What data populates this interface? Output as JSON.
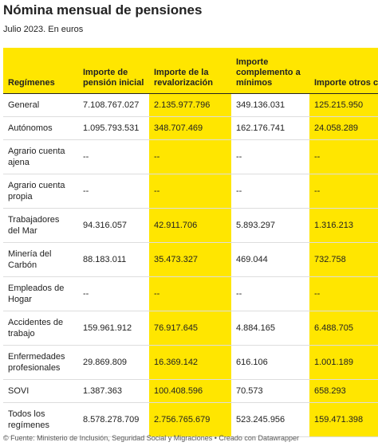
{
  "header": {
    "title": "Nómina mensual de pensiones",
    "subtitle": "Julio 2023. En euros"
  },
  "table": {
    "columns": [
      "Regímenes",
      "Importe de pensión inicial",
      "Importe de la revalorización",
      "Importe complemento a mínimos",
      "Importe otros complementos"
    ],
    "rows": [
      [
        "General",
        "7.108.767.027",
        "2.135.977.796",
        "349.136.031",
        "125.215.950"
      ],
      [
        "Autónomos",
        "1.095.793.531",
        "348.707.469",
        "162.176.741",
        "24.058.289"
      ],
      [
        "Agrario cuenta ajena",
        "--",
        "--",
        "--",
        "--"
      ],
      [
        "Agrario cuenta propia",
        "--",
        "--",
        "--",
        "--"
      ],
      [
        "Trabajadores del Mar",
        "94.316.057",
        "42.911.706",
        "5.893.297",
        "1.316.213"
      ],
      [
        "Minería del Carbón",
        "88.183.011",
        "35.473.327",
        "469.044",
        "732.758"
      ],
      [
        "Empleados de Hogar",
        "--",
        "--",
        "--",
        "--"
      ],
      [
        "Accidentes de trabajo",
        "159.961.912",
        "76.917.645",
        "4.884.165",
        "6.488.705"
      ],
      [
        "Enfermedades profesionales",
        "29.869.809",
        "16.369.142",
        "616.106",
        "1.001.189"
      ],
      [
        "SOVI",
        "1.387.363",
        "100.408.596",
        "70.573",
        "658.293"
      ],
      [
        "Todos los regímenes",
        "8.578.278.709",
        "2.756.765.679",
        "523.245.956",
        "159.471.398"
      ]
    ]
  },
  "footer": "© Fuente: Ministerio de Inclusión, Seguridad Social y Migraciones • Creado con Datawrapper"
}
